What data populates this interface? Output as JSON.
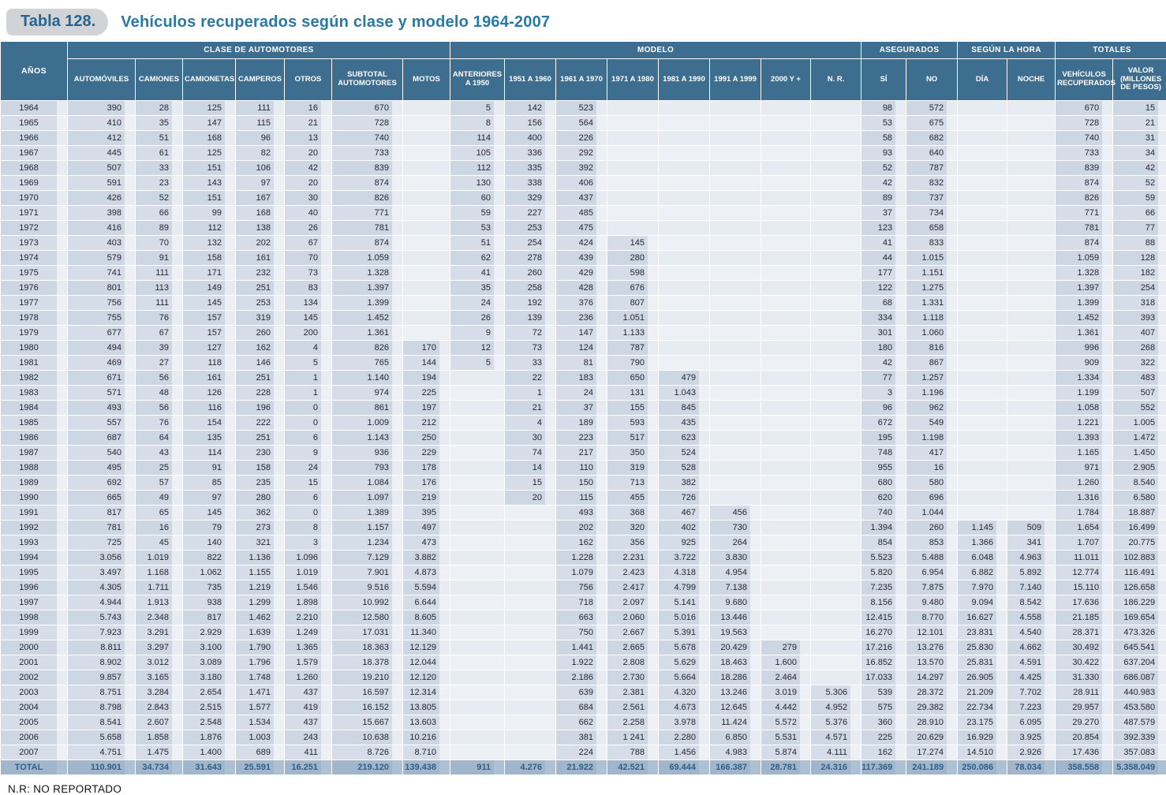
{
  "title": {
    "tag": "Tabla 128.",
    "text": "Vehículos recuperados según clase y modelo 1964-2007"
  },
  "footnote": "N.R: NO REPORTADO",
  "colors": {
    "header_bg": "#3d6d8f",
    "title_accent": "#2979a7",
    "total_text": "#2e6089",
    "cell_box": "#cdd6e3",
    "cell_bg": "#e7ebf2"
  },
  "table": {
    "group_headers": {
      "clase": "CLASE  DE AUTOMOTORES",
      "modelo": "MODELO",
      "asegurados": "ASEGURADOS",
      "hora": "SEGÚN LA HORA",
      "totales": "TOTALES"
    },
    "column_headers": {
      "anos": "AÑOS",
      "automoviles": "AUTOMÓVILES",
      "camiones": "CAMIONES",
      "camionetas": "CAMIONETAS",
      "camperos": "CAMPEROS",
      "otros": "OTROS",
      "subtotal": "SUBTOTAL AUTOMOTORES",
      "motos": "MOTOS",
      "ant1950": "ANTERIORES A 1950",
      "a1951": "1951 A 1960",
      "a1961": "1961 A 1970",
      "a1971": "1971 A 1980",
      "a1981": "1981 A 1990",
      "a1991": "1991 A 1999",
      "a2000": "2000 Y +",
      "nr": "N. R.",
      "si": "SÍ",
      "no": "NO",
      "dia": "DÍA",
      "noche": "NOCHE",
      "vehiculos": "VEHÍCULOS RECUPERADOS",
      "valor": "VALOR (MILLONES DE PESOS)"
    },
    "rows": [
      [
        "1964",
        "390",
        "28",
        "125",
        "111",
        "16",
        "670",
        "",
        "5",
        "142",
        "523",
        "",
        "",
        "",
        "",
        "",
        "98",
        "572",
        "",
        "",
        "670",
        "15"
      ],
      [
        "1965",
        "410",
        "35",
        "147",
        "115",
        "21",
        "728",
        "",
        "8",
        "156",
        "564",
        "",
        "",
        "",
        "",
        "",
        "53",
        "675",
        "",
        "",
        "728",
        "21"
      ],
      [
        "1966",
        "412",
        "51",
        "168",
        "96",
        "13",
        "740",
        "",
        "114",
        "400",
        "226",
        "",
        "",
        "",
        "",
        "",
        "58",
        "682",
        "",
        "",
        "740",
        "31"
      ],
      [
        "1967",
        "445",
        "61",
        "125",
        "82",
        "20",
        "733",
        "",
        "105",
        "336",
        "292",
        "",
        "",
        "",
        "",
        "",
        "93",
        "640",
        "",
        "",
        "733",
        "34"
      ],
      [
        "1968",
        "507",
        "33",
        "151",
        "106",
        "42",
        "839",
        "",
        "112",
        "335",
        "392",
        "",
        "",
        "",
        "",
        "",
        "52",
        "787",
        "",
        "",
        "839",
        "42"
      ],
      [
        "1969",
        "591",
        "23",
        "143",
        "97",
        "20",
        "874",
        "",
        "130",
        "338",
        "406",
        "",
        "",
        "",
        "",
        "",
        "42",
        "832",
        "",
        "",
        "874",
        "52"
      ],
      [
        "1970",
        "426",
        "52",
        "151",
        "167",
        "30",
        "826",
        "",
        "60",
        "329",
        "437",
        "",
        "",
        "",
        "",
        "",
        "89",
        "737",
        "",
        "",
        "826",
        "59"
      ],
      [
        "1971",
        "398",
        "66",
        "99",
        "168",
        "40",
        "771",
        "",
        "59",
        "227",
        "485",
        "",
        "",
        "",
        "",
        "",
        "37",
        "734",
        "",
        "",
        "771",
        "66"
      ],
      [
        "1972",
        "416",
        "89",
        "112",
        "138",
        "26",
        "781",
        "",
        "53",
        "253",
        "475",
        "",
        "",
        "",
        "",
        "",
        "123",
        "658",
        "",
        "",
        "781",
        "77"
      ],
      [
        "1973",
        "403",
        "70",
        "132",
        "202",
        "67",
        "874",
        "",
        "51",
        "254",
        "424",
        "145",
        "",
        "",
        "",
        "",
        "41",
        "833",
        "",
        "",
        "874",
        "88"
      ],
      [
        "1974",
        "579",
        "91",
        "158",
        "161",
        "70",
        "1.059",
        "",
        "62",
        "278",
        "439",
        "280",
        "",
        "",
        "",
        "",
        "44",
        "1.015",
        "",
        "",
        "1.059",
        "128"
      ],
      [
        "1975",
        "741",
        "111",
        "171",
        "232",
        "73",
        "1.328",
        "",
        "41",
        "260",
        "429",
        "598",
        "",
        "",
        "",
        "",
        "177",
        "1.151",
        "",
        "",
        "1.328",
        "182"
      ],
      [
        "1976",
        "801",
        "113",
        "149",
        "251",
        "83",
        "1.397",
        "",
        "35",
        "258",
        "428",
        "676",
        "",
        "",
        "",
        "",
        "122",
        "1.275",
        "",
        "",
        "1.397",
        "254"
      ],
      [
        "1977",
        "756",
        "111",
        "145",
        "253",
        "134",
        "1.399",
        "",
        "24",
        "192",
        "376",
        "807",
        "",
        "",
        "",
        "",
        "68",
        "1.331",
        "",
        "",
        "1.399",
        "318"
      ],
      [
        "1978",
        "755",
        "76",
        "157",
        "319",
        "145",
        "1.452",
        "",
        "26",
        "139",
        "236",
        "1.051",
        "",
        "",
        "",
        "",
        "334",
        "1.118",
        "",
        "",
        "1.452",
        "393"
      ],
      [
        "1979",
        "677",
        "67",
        "157",
        "260",
        "200",
        "1.361",
        "",
        "9",
        "72",
        "147",
        "1.133",
        "",
        "",
        "",
        "",
        "301",
        "1.060",
        "",
        "",
        "1.361",
        "407"
      ],
      [
        "1980",
        "494",
        "39",
        "127",
        "162",
        "4",
        "826",
        "170",
        "12",
        "73",
        "124",
        "787",
        "",
        "",
        "",
        "",
        "180",
        "816",
        "",
        "",
        "996",
        "268"
      ],
      [
        "1981",
        "469",
        "27",
        "118",
        "146",
        "5",
        "765",
        "144",
        "5",
        "33",
        "81",
        "790",
        "",
        "",
        "",
        "",
        "42",
        "867",
        "",
        "",
        "909",
        "322"
      ],
      [
        "1982",
        "671",
        "56",
        "161",
        "251",
        "1",
        "1.140",
        "194",
        "",
        "22",
        "183",
        "650",
        "479",
        "",
        "",
        "",
        "77",
        "1.257",
        "",
        "",
        "1.334",
        "483"
      ],
      [
        "1983",
        "571",
        "48",
        "126",
        "228",
        "1",
        "974",
        "225",
        "",
        "1",
        "24",
        "131",
        "1.043",
        "",
        "",
        "",
        "3",
        "1.196",
        "",
        "",
        "1.199",
        "507"
      ],
      [
        "1984",
        "493",
        "56",
        "116",
        "196",
        "0",
        "861",
        "197",
        "",
        "21",
        "37",
        "155",
        "845",
        "",
        "",
        "",
        "96",
        "962",
        "",
        "",
        "1.058",
        "552"
      ],
      [
        "1985",
        "557",
        "76",
        "154",
        "222",
        "0",
        "1.009",
        "212",
        "",
        "4",
        "189",
        "593",
        "435",
        "",
        "",
        "",
        "672",
        "549",
        "",
        "",
        "1.221",
        "1.005"
      ],
      [
        "1986",
        "687",
        "64",
        "135",
        "251",
        "6",
        "1.143",
        "250",
        "",
        "30",
        "223",
        "517",
        "623",
        "",
        "",
        "",
        "195",
        "1.198",
        "",
        "",
        "1.393",
        "1.472"
      ],
      [
        "1987",
        "540",
        "43",
        "114",
        "230",
        "9",
        "936",
        "229",
        "",
        "74",
        "217",
        "350",
        "524",
        "",
        "",
        "",
        "748",
        "417",
        "",
        "",
        "1.165",
        "1.450"
      ],
      [
        "1988",
        "495",
        "25",
        "91",
        "158",
        "24",
        "793",
        "178",
        "",
        "14",
        "110",
        "319",
        "528",
        "",
        "",
        "",
        "955",
        "16",
        "",
        "",
        "971",
        "2.905"
      ],
      [
        "1989",
        "692",
        "57",
        "85",
        "235",
        "15",
        "1.084",
        "176",
        "",
        "15",
        "150",
        "713",
        "382",
        "",
        "",
        "",
        "680",
        "580",
        "",
        "",
        "1.260",
        "8.540"
      ],
      [
        "1990",
        "665",
        "49",
        "97",
        "280",
        "6",
        "1.097",
        "219",
        "",
        "20",
        "115",
        "455",
        "726",
        "",
        "",
        "",
        "620",
        "696",
        "",
        "",
        "1.316",
        "6.580"
      ],
      [
        "1991",
        "817",
        "65",
        "145",
        "362",
        "0",
        "1.389",
        "395",
        "",
        "",
        "493",
        "368",
        "467",
        "456",
        "",
        "",
        "740",
        "1.044",
        "",
        "",
        "1.784",
        "18.887"
      ],
      [
        "1992",
        "781",
        "16",
        "79",
        "273",
        "8",
        "1.157",
        "497",
        "",
        "",
        "202",
        "320",
        "402",
        "730",
        "",
        "",
        "1.394",
        "260",
        "1.145",
        "509",
        "1.654",
        "16.499"
      ],
      [
        "1993",
        "725",
        "45",
        "140",
        "321",
        "3",
        "1.234",
        "473",
        "",
        "",
        "162",
        "356",
        "925",
        "264",
        "",
        "",
        "854",
        "853",
        "1.366",
        "341",
        "1.707",
        "20.775"
      ],
      [
        "1994",
        "3.056",
        "1.019",
        "822",
        "1.136",
        "1.096",
        "7.129",
        "3.882",
        "",
        "",
        "1.228",
        "2.231",
        "3.722",
        "3.830",
        "",
        "",
        "5.523",
        "5.488",
        "6.048",
        "4.963",
        "11.011",
        "102.883"
      ],
      [
        "1995",
        "3.497",
        "1.168",
        "1.062",
        "1.155",
        "1.019",
        "7.901",
        "4.873",
        "",
        "",
        "1.079",
        "2.423",
        "4.318",
        "4.954",
        "",
        "",
        "5.820",
        "6.954",
        "6.882",
        "5.892",
        "12.774",
        "116.491"
      ],
      [
        "1996",
        "4.305",
        "1.711",
        "735",
        "1.219",
        "1.546",
        "9.516",
        "5.594",
        "",
        "",
        "756",
        "2.417",
        "4.799",
        "7.138",
        "",
        "",
        "7.235",
        "7.875",
        "7.970",
        "7.140",
        "15.110",
        "126.658"
      ],
      [
        "1997",
        "4.944",
        "1.913",
        "938",
        "1.299",
        "1.898",
        "10.992",
        "6.644",
        "",
        "",
        "718",
        "2.097",
        "5.141",
        "9.680",
        "",
        "",
        "8.156",
        "9.480",
        "9.094",
        "8.542",
        "17.636",
        "186.229"
      ],
      [
        "1998",
        "5.743",
        "2.348",
        "817",
        "1.462",
        "2.210",
        "12.580",
        "8.605",
        "",
        "",
        "663",
        "2.060",
        "5.016",
        "13.446",
        "",
        "",
        "12.415",
        "8.770",
        "16.627",
        "4.558",
        "21.185",
        "169.654"
      ],
      [
        "1999",
        "7.923",
        "3.291",
        "2.929",
        "1.639",
        "1.249",
        "17.031",
        "11.340",
        "",
        "",
        "750",
        "2.667",
        "5.391",
        "19.563",
        "",
        "",
        "16.270",
        "12.101",
        "23.831",
        "4.540",
        "28.371",
        "473.326"
      ],
      [
        "2000",
        "8.811",
        "3.297",
        "3.100",
        "1.790",
        "1.365",
        "18.363",
        "12.129",
        "",
        "",
        "1.441",
        "2.665",
        "5.678",
        "20.429",
        "279",
        "",
        "17.216",
        "13.276",
        "25.830",
        "4.662",
        "30.492",
        "645.541"
      ],
      [
        "2001",
        "8.902",
        "3.012",
        "3.089",
        "1.796",
        "1.579",
        "18.378",
        "12.044",
        "",
        "",
        "1.922",
        "2.808",
        "5.629",
        "18.463",
        "1.600",
        "",
        "16.852",
        "13.570",
        "25.831",
        "4.591",
        "30.422",
        "637.204"
      ],
      [
        "2002",
        "9.857",
        "3.165",
        "3.180",
        "1.748",
        "1.260",
        "19.210",
        "12.120",
        "",
        "",
        "2.186",
        "2.730",
        "5.664",
        "18.286",
        "2.464",
        "",
        "17.033",
        "14.297",
        "26.905",
        "4.425",
        "31.330",
        "686.087"
      ],
      [
        "2003",
        "8.751",
        "3.284",
        "2.654",
        "1.471",
        "437",
        "16.597",
        "12.314",
        "",
        "",
        "639",
        "2.381",
        "4.320",
        "13.246",
        "3.019",
        "5.306",
        "539",
        "28.372",
        "21.209",
        "7.702",
        "28.911",
        "440.983"
      ],
      [
        "2004",
        "8.798",
        "2.843",
        "2.515",
        "1.577",
        "419",
        "16.152",
        "13.805",
        "",
        "",
        "684",
        "2.561",
        "4.673",
        "12.645",
        "4.442",
        "4.952",
        "575",
        "29.382",
        "22.734",
        "7.223",
        "29.957",
        "453.580"
      ],
      [
        "2005",
        "8.541",
        "2.607",
        "2.548",
        "1.534",
        "437",
        "15.667",
        "13.603",
        "",
        "",
        "662",
        "2.258",
        "3.978",
        "11.424",
        "5.572",
        "5.376",
        "360",
        "28.910",
        "23.175",
        "6.095",
        "29.270",
        "487.579"
      ],
      [
        "2006",
        "5.658",
        "1.858",
        "1.876",
        "1.003",
        "243",
        "10.638",
        "10.216",
        "",
        "",
        "381",
        "1 241",
        "2.280",
        "6.850",
        "5.531",
        "4.571",
        "225",
        "20.629",
        "16.929",
        "3.925",
        "20.854",
        "392.339"
      ],
      [
        "2007",
        "4.751",
        "1.475",
        "1.400",
        "689",
        "411",
        "8.726",
        "8.710",
        "",
        "",
        "224",
        "788",
        "1.456",
        "4.983",
        "5.874",
        "4.111",
        "162",
        "17.274",
        "14.510",
        "2.926",
        "17.436",
        "357.083"
      ]
    ],
    "total_row": [
      "TOTAL",
      "110.901",
      "34.734",
      "31.643",
      "25.591",
      "16.251",
      "219.120",
      "139.438",
      "911",
      "4.276",
      "21.922",
      "42.521",
      "69.444",
      "166.387",
      "28.781",
      "24.316",
      "117.369",
      "241.189",
      "250.086",
      "78.034",
      "358.558",
      "5.358.049"
    ]
  }
}
